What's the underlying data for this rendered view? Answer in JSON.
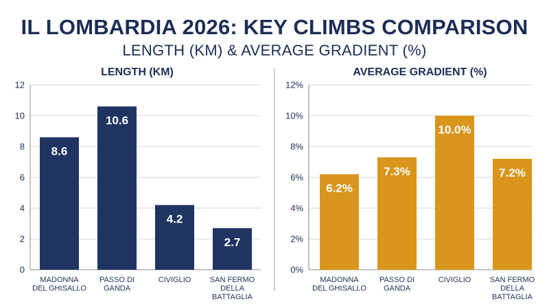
{
  "page": {
    "title": "IL LOMBARDIA 2026: KEY CLIMBS COMPARISON",
    "subtitle": "LENGTH (KM) & AVERAGE GRADIENT (%)"
  },
  "colors": {
    "length_bar": "#1f3461",
    "gradient_bar": "#d9951c",
    "text": "#1c2d55",
    "grid": "#d4d4d4",
    "divider": "#9a9a9a"
  },
  "chart_data": [
    {
      "type": "bar",
      "title": "LENGTH (KM)",
      "categories": [
        [
          "MADONNA",
          "DEL GHISALLO"
        ],
        [
          "PASSO DI",
          "GANDA"
        ],
        [
          "CIVIGLIO"
        ],
        [
          "SAN FERMO",
          "DELLA",
          "BATTAGLIA"
        ]
      ],
      "values": [
        8.6,
        10.6,
        4.2,
        2.7
      ],
      "value_labels": [
        "8.6",
        "10.6",
        "4.2",
        "2.7"
      ],
      "ylim": [
        0,
        12
      ],
      "yticks": [
        0,
        2,
        4,
        6,
        8,
        10,
        12
      ],
      "ytick_labels": [
        "0",
        "2",
        "4",
        "6",
        "8",
        "10",
        "12"
      ],
      "grid": true
    },
    {
      "type": "bar",
      "title": "AVERAGE GRADIENT (%)",
      "categories": [
        [
          "MADONNA",
          "DEL GHISALLO"
        ],
        [
          "PASSO DI",
          "GANDA"
        ],
        [
          "CIVIGLIO"
        ],
        [
          "SAN FERMO",
          "DELLA",
          "BATTAGLIA"
        ]
      ],
      "values": [
        6.2,
        7.3,
        10.0,
        7.2
      ],
      "value_labels": [
        "6.2%",
        "7.3%",
        "10.0%",
        "7.2%"
      ],
      "ylim": [
        0,
        12
      ],
      "yticks": [
        0,
        2,
        4,
        6,
        8,
        10,
        12
      ],
      "ytick_labels": [
        "0%",
        "2%",
        "4%",
        "6%",
        "8%",
        "10%",
        "12%"
      ],
      "grid": true
    }
  ]
}
